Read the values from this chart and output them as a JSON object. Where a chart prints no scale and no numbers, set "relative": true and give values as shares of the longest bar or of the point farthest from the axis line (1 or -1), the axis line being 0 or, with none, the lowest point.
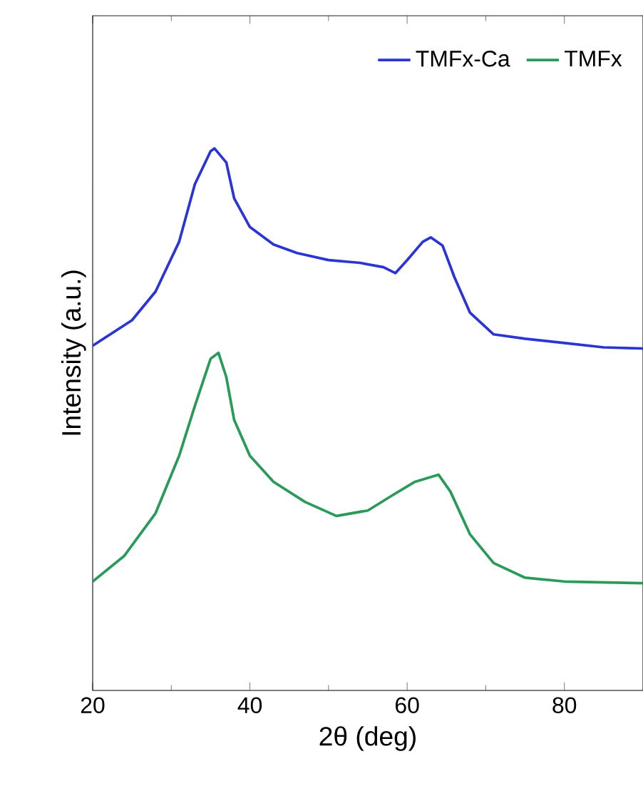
{
  "chart_data": {
    "type": "line",
    "relative": true,
    "xlabel": "2θ (deg)",
    "ylabel": "Intensity (a.u.)",
    "xlim": [
      20,
      90
    ],
    "xticks": [
      20,
      40,
      60,
      80
    ],
    "legend": "top right",
    "grid": false,
    "marker": "none",
    "line_style": "solid",
    "series": [
      {
        "name": "TMFx-Ca",
        "color": "#2b35d4",
        "x": [
          20,
          25,
          28,
          31,
          33,
          35,
          35.5,
          37,
          38,
          40,
          43,
          46,
          50,
          54,
          57,
          58.5,
          60,
          62,
          63,
          64.5,
          66,
          68,
          71,
          75,
          80,
          85,
          90
        ],
        "values": [
          0.636,
          0.683,
          0.736,
          0.828,
          0.934,
          0.995,
          1,
          0.974,
          0.908,
          0.855,
          0.823,
          0.807,
          0.794,
          0.789,
          0.781,
          0.77,
          0.794,
          0.828,
          0.836,
          0.821,
          0.763,
          0.697,
          0.657,
          0.649,
          0.641,
          0.633,
          0.631
        ]
      },
      {
        "name": "TMFx",
        "color": "#2a9a5a",
        "x": [
          20,
          24,
          28,
          31,
          33,
          35,
          36,
          37,
          38,
          40,
          43,
          47,
          51,
          55,
          58,
          61,
          64,
          65.5,
          68,
          71,
          75,
          80,
          90
        ],
        "values": [
          0.201,
          0.248,
          0.327,
          0.433,
          0.525,
          0.612,
          0.623,
          0.578,
          0.499,
          0.433,
          0.385,
          0.348,
          0.322,
          0.332,
          0.359,
          0.385,
          0.398,
          0.367,
          0.288,
          0.235,
          0.208,
          0.201,
          0.198
        ]
      }
    ]
  }
}
